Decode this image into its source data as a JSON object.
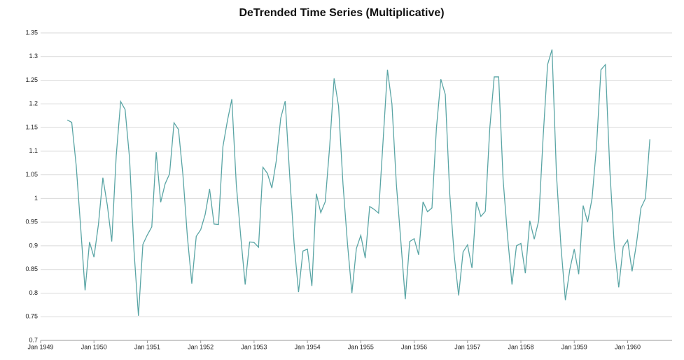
{
  "chart_data": {
    "type": "line",
    "title": "DeTrended Time Series (Multiplicative)",
    "x": [
      "1949-07",
      "1949-08",
      "1949-09",
      "1949-10",
      "1949-11",
      "1949-12",
      "1950-01",
      "1950-02",
      "1950-03",
      "1950-04",
      "1950-05",
      "1950-06",
      "1950-07",
      "1950-08",
      "1950-09",
      "1950-10",
      "1950-11",
      "1950-12",
      "1951-01",
      "1951-02",
      "1951-03",
      "1951-04",
      "1951-05",
      "1951-06",
      "1951-07",
      "1951-08",
      "1951-09",
      "1951-10",
      "1951-11",
      "1951-12",
      "1952-01",
      "1952-02",
      "1952-03",
      "1952-04",
      "1952-05",
      "1952-06",
      "1952-07",
      "1952-08",
      "1952-09",
      "1952-10",
      "1952-11",
      "1952-12",
      "1953-01",
      "1953-02",
      "1953-03",
      "1953-04",
      "1953-05",
      "1953-06",
      "1953-07",
      "1953-08",
      "1953-09",
      "1953-10",
      "1953-11",
      "1953-12",
      "1954-01",
      "1954-02",
      "1954-03",
      "1954-04",
      "1954-05",
      "1954-06",
      "1954-07",
      "1954-08",
      "1954-09",
      "1954-10",
      "1954-11",
      "1954-12",
      "1955-01",
      "1955-02",
      "1955-03",
      "1955-04",
      "1955-05",
      "1955-06",
      "1955-07",
      "1955-08",
      "1955-09",
      "1955-10",
      "1955-11",
      "1955-12",
      "1956-01",
      "1956-02",
      "1956-03",
      "1956-04",
      "1956-05",
      "1956-06",
      "1956-07",
      "1956-08",
      "1956-09",
      "1956-10",
      "1956-11",
      "1956-12",
      "1957-01",
      "1957-02",
      "1957-03",
      "1957-04",
      "1957-05",
      "1957-06",
      "1957-07",
      "1957-08",
      "1957-09",
      "1957-10",
      "1957-11",
      "1957-12",
      "1958-01",
      "1958-02",
      "1958-03",
      "1958-04",
      "1958-05",
      "1958-06",
      "1958-07",
      "1958-08",
      "1958-09",
      "1958-10",
      "1958-11",
      "1958-12",
      "1959-01",
      "1959-02",
      "1959-03",
      "1959-04",
      "1959-05",
      "1959-06",
      "1959-07",
      "1959-08",
      "1959-09",
      "1959-10",
      "1959-11",
      "1959-12",
      "1960-01",
      "1960-02",
      "1960-03",
      "1960-04",
      "1960-05",
      "1960-06"
    ],
    "values": [
      1.166,
      1.161,
      1.07,
      0.94,
      0.806,
      0.908,
      0.876,
      0.945,
      1.044,
      0.986,
      0.909,
      1.09,
      1.205,
      1.188,
      1.085,
      0.89,
      0.752,
      0.903,
      0.923,
      0.94,
      1.098,
      0.992,
      1.031,
      1.052,
      1.16,
      1.146,
      1.05,
      0.92,
      0.82,
      0.92,
      0.934,
      0.966,
      1.02,
      0.946,
      0.945,
      1.11,
      1.164,
      1.21,
      1.03,
      0.92,
      0.818,
      0.908,
      0.907,
      0.897,
      1.066,
      1.053,
      1.022,
      1.08,
      1.17,
      1.206,
      1.05,
      0.905,
      0.802,
      0.889,
      0.893,
      0.815,
      1.01,
      0.97,
      0.993,
      1.11,
      1.254,
      1.195,
      1.03,
      0.905,
      0.8,
      0.894,
      0.922,
      0.874,
      0.983,
      0.977,
      0.969,
      1.12,
      1.272,
      1.2,
      1.03,
      0.91,
      0.787,
      0.909,
      0.915,
      0.881,
      0.993,
      0.972,
      0.98,
      1.148,
      1.252,
      1.22,
      1.01,
      0.88,
      0.795,
      0.887,
      0.902,
      0.853,
      0.993,
      0.962,
      0.973,
      1.148,
      1.257,
      1.257,
      1.04,
      0.92,
      0.818,
      0.9,
      0.905,
      0.842,
      0.953,
      0.914,
      0.953,
      1.13,
      1.283,
      1.315,
      1.05,
      0.9,
      0.785,
      0.85,
      0.893,
      0.84,
      0.985,
      0.95,
      1.0,
      1.11,
      1.272,
      1.283,
      1.06,
      0.9,
      0.812,
      0.898,
      0.912,
      0.846,
      0.905,
      0.98,
      1.0,
      1.125
    ],
    "color": "#5aa5a5",
    "xlim": [
      "1949-01",
      "1960-11"
    ],
    "xticks": [
      {
        "value": "1949-01",
        "label": "Jan 1949"
      },
      {
        "value": "1950-01",
        "label": "Jan 1950"
      },
      {
        "value": "1951-01",
        "label": "Jan 1951"
      },
      {
        "value": "1952-01",
        "label": "Jan 1952"
      },
      {
        "value": "1953-01",
        "label": "Jan 1953"
      },
      {
        "value": "1954-01",
        "label": "Jan 1954"
      },
      {
        "value": "1955-01",
        "label": "Jan 1955"
      },
      {
        "value": "1956-01",
        "label": "Jan 1956"
      },
      {
        "value": "1957-01",
        "label": "Jan 1957"
      },
      {
        "value": "1958-01",
        "label": "Jan 1958"
      },
      {
        "value": "1959-01",
        "label": "Jan 1959"
      },
      {
        "value": "1960-01",
        "label": "Jan 1960"
      }
    ],
    "ylim": [
      0.7,
      1.35
    ],
    "yticks": [
      0.7,
      0.75,
      0.8,
      0.85,
      0.9,
      0.95,
      1,
      1.05,
      1.1,
      1.15,
      1.2,
      1.25,
      1.3,
      1.35
    ],
    "grid": true
  }
}
